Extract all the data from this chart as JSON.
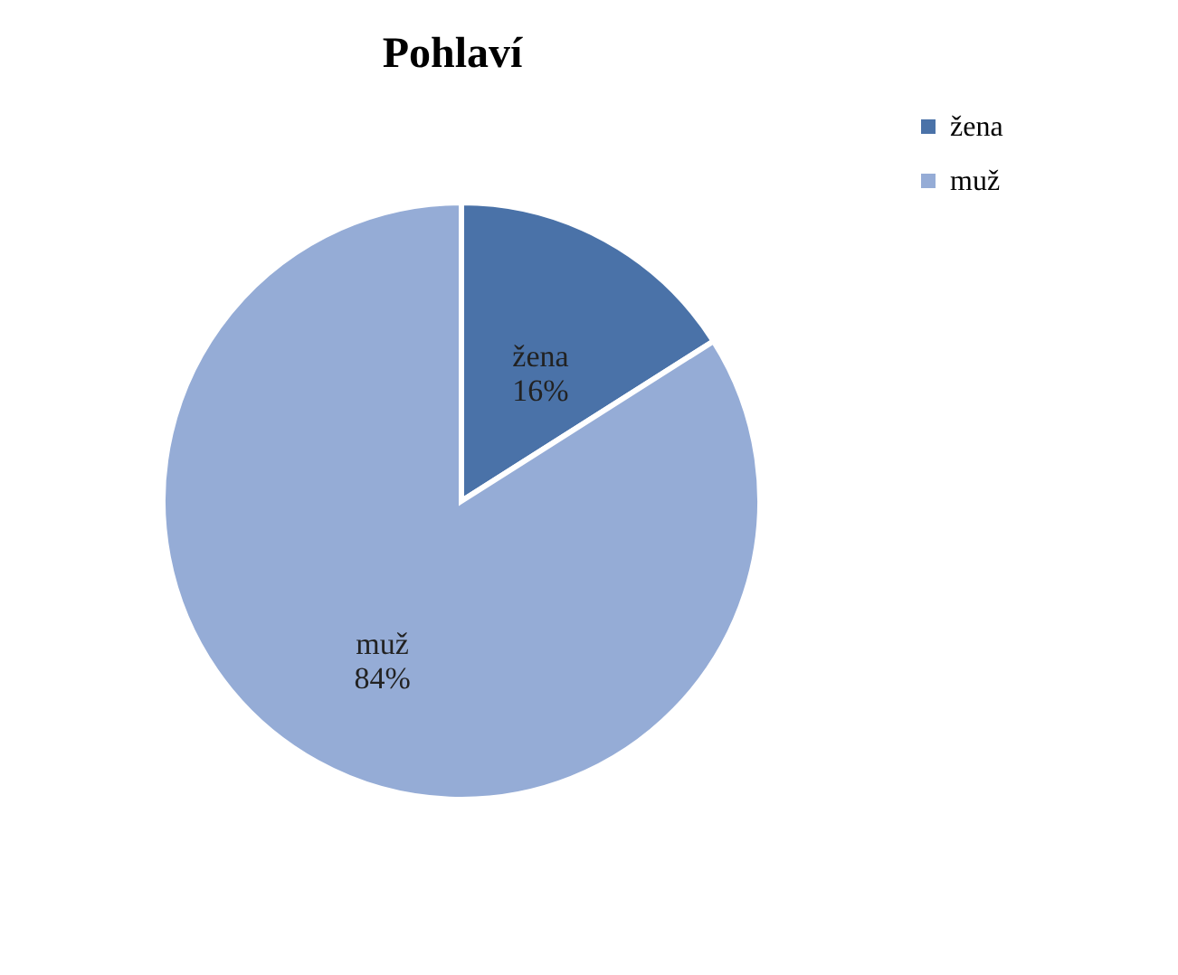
{
  "chart_data": {
    "type": "pie",
    "title": "Pohlaví",
    "categories": [
      "žena",
      "muž"
    ],
    "values": [
      16,
      84
    ],
    "value_labels": [
      "16%",
      "84%"
    ],
    "colors": [
      "#4a72a8",
      "#95acd6"
    ],
    "legend": "right"
  }
}
